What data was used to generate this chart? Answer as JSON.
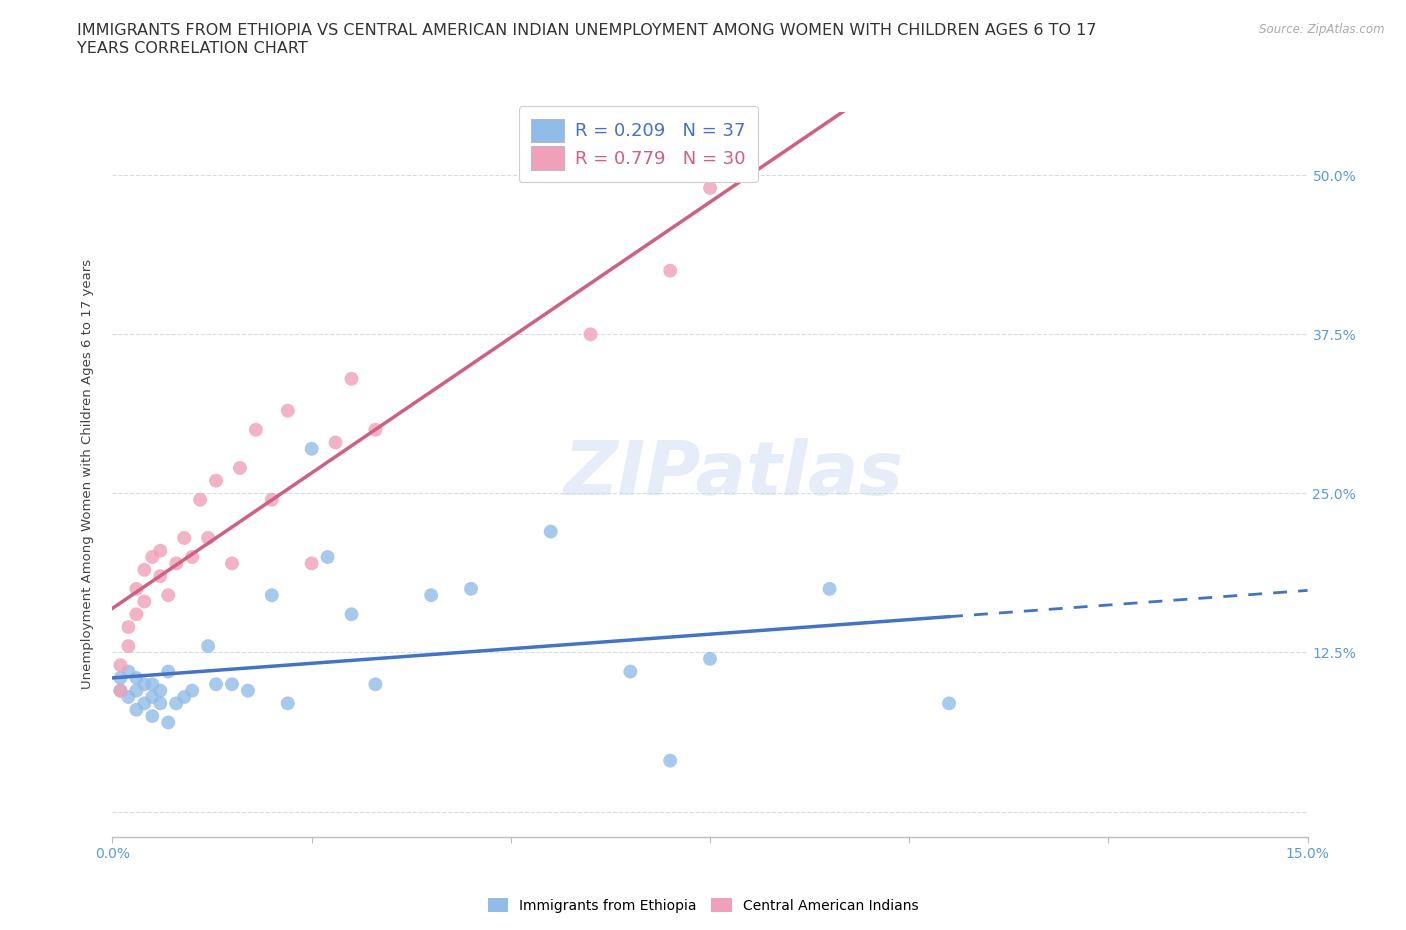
{
  "title": "IMMIGRANTS FROM ETHIOPIA VS CENTRAL AMERICAN INDIAN UNEMPLOYMENT AMONG WOMEN WITH CHILDREN AGES 6 TO 17\nYEARS CORRELATION CHART",
  "source": "Source: ZipAtlas.com",
  "ylabel": "Unemployment Among Women with Children Ages 6 to 17 years",
  "xlim": [
    0.0,
    0.15
  ],
  "ylim": [
    -0.02,
    0.55
  ],
  "xtick_pos": [
    0.0,
    0.025,
    0.05,
    0.075,
    0.1,
    0.125,
    0.15
  ],
  "ytick_pos": [
    0.0,
    0.125,
    0.25,
    0.375,
    0.5
  ],
  "ytick_labels": [
    "",
    "12.5%",
    "25.0%",
    "37.5%",
    "50.0%"
  ],
  "grid_color": "#d8dce8",
  "background_color": "#ffffff",
  "watermark": "ZIPatlas",
  "r_ethiopia": 0.209,
  "n_ethiopia": 37,
  "r_central": 0.779,
  "n_central": 30,
  "color_ethiopia": "#90bce8",
  "color_central": "#f0a0b8",
  "line_color_ethiopia": "#4472c4",
  "line_color_central": "#d06080",
  "tick_color": "#5b9bd5",
  "title_fontsize": 11.5,
  "axis_label_fontsize": 9.5,
  "tick_fontsize": 10,
  "marker_size": 100,
  "ethiopia_x": [
    0.001,
    0.001,
    0.002,
    0.002,
    0.003,
    0.003,
    0.003,
    0.004,
    0.004,
    0.005,
    0.005,
    0.005,
    0.006,
    0.006,
    0.007,
    0.007,
    0.008,
    0.009,
    0.01,
    0.012,
    0.013,
    0.015,
    0.017,
    0.02,
    0.022,
    0.025,
    0.027,
    0.03,
    0.033,
    0.04,
    0.045,
    0.055,
    0.065,
    0.07,
    0.075,
    0.09,
    0.105
  ],
  "ethiopia_y": [
    0.095,
    0.105,
    0.09,
    0.11,
    0.08,
    0.095,
    0.105,
    0.085,
    0.1,
    0.075,
    0.09,
    0.1,
    0.085,
    0.095,
    0.07,
    0.11,
    0.085,
    0.09,
    0.095,
    0.13,
    0.1,
    0.1,
    0.095,
    0.17,
    0.085,
    0.285,
    0.2,
    0.155,
    0.1,
    0.17,
    0.175,
    0.22,
    0.11,
    0.04,
    0.12,
    0.175,
    0.085
  ],
  "central_x": [
    0.001,
    0.001,
    0.002,
    0.002,
    0.003,
    0.003,
    0.004,
    0.004,
    0.005,
    0.006,
    0.006,
    0.007,
    0.008,
    0.009,
    0.01,
    0.011,
    0.012,
    0.013,
    0.015,
    0.016,
    0.018,
    0.02,
    0.022,
    0.025,
    0.028,
    0.03,
    0.033,
    0.06,
    0.07,
    0.075
  ],
  "central_y": [
    0.095,
    0.115,
    0.13,
    0.145,
    0.155,
    0.175,
    0.165,
    0.19,
    0.2,
    0.185,
    0.205,
    0.17,
    0.195,
    0.215,
    0.2,
    0.245,
    0.215,
    0.26,
    0.195,
    0.27,
    0.3,
    0.245,
    0.315,
    0.195,
    0.29,
    0.34,
    0.3,
    0.375,
    0.425,
    0.49
  ]
}
